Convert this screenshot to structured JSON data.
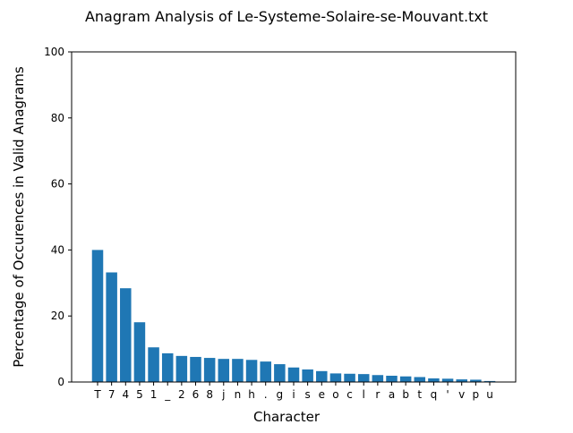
{
  "chart_data": {
    "type": "bar",
    "title": "Anagram Analysis of Le-Systeme-Solaire-se-Mouvant.txt",
    "xlabel": "Character",
    "ylabel": "Percentage of Occurences in Valid Anagrams",
    "ylim": [
      0,
      100
    ],
    "yticks": [
      0,
      20,
      40,
      60,
      80,
      100
    ],
    "grid": false,
    "bar_color": "#1f77b4",
    "categories": [
      "T",
      "7",
      "4",
      "5",
      "1",
      "_",
      "2",
      "6",
      "8",
      "j",
      "n",
      "h",
      ".",
      "g",
      "i",
      "s",
      "e",
      "o",
      "c",
      "l",
      "r",
      "a",
      "b",
      "t",
      "q",
      "'",
      "v",
      "p",
      "u"
    ],
    "values": [
      40.0,
      33.2,
      28.4,
      18.1,
      10.5,
      8.7,
      7.9,
      7.6,
      7.3,
      7.0,
      7.0,
      6.7,
      6.2,
      5.4,
      4.4,
      3.8,
      3.3,
      2.6,
      2.5,
      2.4,
      2.1,
      1.9,
      1.7,
      1.5,
      1.1,
      1.0,
      0.8,
      0.7,
      0.3
    ]
  }
}
